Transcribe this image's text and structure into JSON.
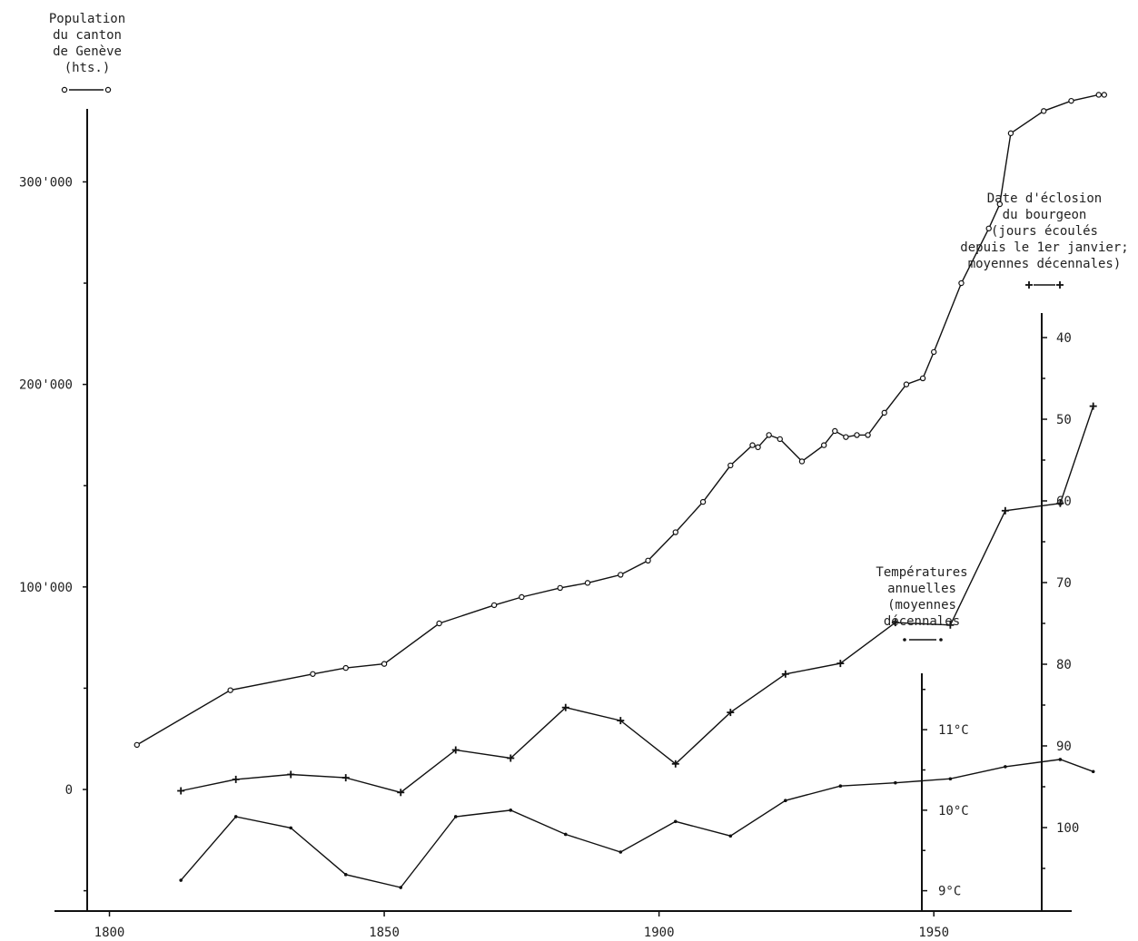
{
  "chart_data": {
    "type": "line",
    "x_ticks": [
      1800,
      1850,
      1900,
      1950
    ],
    "xlim": [
      1790,
      1985
    ],
    "axes": {
      "population": {
        "title_lines": [
          "Population",
          "du canton",
          "de Genève",
          "(hts.)"
        ],
        "ticks": [
          0,
          100000,
          200000,
          300000
        ],
        "tick_labels": [
          "0",
          "100'000",
          "200'000",
          "300'000"
        ],
        "ylim": [
          -56000,
          345000
        ]
      },
      "bud": {
        "title_lines": [
          "Date d'éclosion",
          "du bourgeon",
          "(jours écoulés",
          "depuis le 1er janvier;",
          "moyennes décennales)"
        ],
        "ticks": [
          40,
          50,
          60,
          70,
          80,
          90,
          100
        ],
        "tick_labels": [
          "40",
          "50",
          "60",
          "70",
          "80",
          "90",
          "100"
        ],
        "ylim": [
          110,
          37
        ],
        "inverted": true
      },
      "temperature": {
        "title_lines": [
          "Températures",
          "annuelles",
          "(moyennes",
          "décennales"
        ],
        "ticks": [
          9,
          10,
          11
        ],
        "tick_labels": [
          "9°C",
          "10°C",
          "11°C"
        ],
        "ylim": [
          8.77,
          11.7
        ]
      }
    },
    "series": [
      {
        "name": "Population du canton de Genève",
        "axis": "population",
        "marker": "circle",
        "x": [
          1805,
          1822,
          1837,
          1843,
          1850,
          1860,
          1870,
          1875,
          1882,
          1887,
          1893,
          1898,
          1903,
          1908,
          1913,
          1917,
          1918,
          1920,
          1922,
          1926,
          1930,
          1932,
          1934,
          1936,
          1938,
          1941,
          1945,
          1948,
          1950,
          1955,
          1960,
          1962,
          1964,
          1970,
          1975,
          1980,
          1981
        ],
        "y": [
          22000,
          49000,
          57000,
          60000,
          62000,
          82000,
          91000,
          95000,
          99500,
          102000,
          106000,
          113000,
          127000,
          142000,
          160000,
          170000,
          169000,
          175000,
          173000,
          162000,
          170000,
          177000,
          174000,
          175000,
          175000,
          186000,
          200000,
          203000,
          216000,
          250000,
          277000,
          289000,
          324000,
          335000,
          340000,
          343000,
          343000
        ]
      },
      {
        "name": "Date d'éclosion du bourgeon",
        "axis": "bud",
        "marker": "plus",
        "x": [
          1813,
          1823,
          1833,
          1843,
          1853,
          1863,
          1873,
          1883,
          1893,
          1903,
          1913,
          1923,
          1933,
          1943,
          1953,
          1963,
          1973,
          1979
        ],
        "y": [
          95.5,
          94.1,
          93.5,
          93.9,
          95.7,
          90.5,
          91.5,
          85.3,
          86.9,
          92.2,
          85.9,
          81.2,
          79.9,
          74.9,
          75.2,
          61.2,
          60.3,
          48.4
        ]
      },
      {
        "name": "Températures annuelles",
        "axis": "temperature",
        "marker": "dot",
        "x": [
          1813,
          1823,
          1833,
          1843,
          1853,
          1863,
          1873,
          1883,
          1893,
          1903,
          1913,
          1923,
          1933,
          1943,
          1953,
          1963,
          1973,
          1979
        ],
        "y": [
          9.13,
          9.92,
          9.78,
          9.2,
          9.04,
          9.92,
          10.0,
          9.7,
          9.48,
          9.86,
          9.68,
          10.12,
          10.3,
          10.34,
          10.39,
          10.54,
          10.63,
          10.48
        ]
      }
    ],
    "legend_symbols": {
      "population": "○——○",
      "bud": "+—+",
      "temperature": "·——·"
    }
  }
}
